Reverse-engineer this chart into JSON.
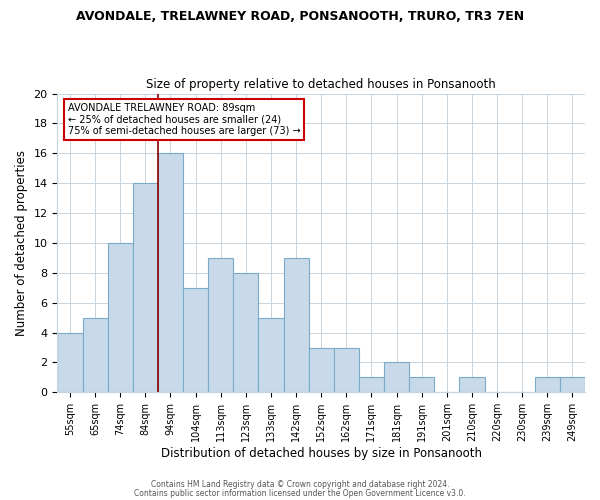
{
  "title": "AVONDALE, TRELAWNEY ROAD, PONSANOOTH, TRURO, TR3 7EN",
  "subtitle": "Size of property relative to detached houses in Ponsanooth",
  "xlabel": "Distribution of detached houses by size in Ponsanooth",
  "ylabel": "Number of detached properties",
  "bar_color": "#c8daea",
  "bar_edge_color": "#7baac8",
  "categories": [
    "55sqm",
    "65sqm",
    "74sqm",
    "84sqm",
    "94sqm",
    "104sqm",
    "113sqm",
    "123sqm",
    "133sqm",
    "142sqm",
    "152sqm",
    "162sqm",
    "171sqm",
    "181sqm",
    "191sqm",
    "201sqm",
    "210sqm",
    "220sqm",
    "230sqm",
    "239sqm",
    "249sqm"
  ],
  "values": [
    4,
    5,
    10,
    14,
    16,
    7,
    9,
    8,
    5,
    9,
    3,
    3,
    1,
    2,
    1,
    0,
    1,
    0,
    0,
    1,
    1
  ],
  "ylim": [
    0,
    20
  ],
  "yticks": [
    0,
    2,
    4,
    6,
    8,
    10,
    12,
    14,
    16,
    18,
    20
  ],
  "vline_color": "#8b0000",
  "annotation_lines": [
    "AVONDALE TRELAWNEY ROAD: 89sqm",
    "← 25% of detached houses are smaller (24)",
    "75% of semi-detached houses are larger (73) →"
  ],
  "footer_lines": [
    "Contains HM Land Registry data © Crown copyright and database right 2024.",
    "Contains public sector information licensed under the Open Government Licence v3.0."
  ],
  "background_color": "#ffffff",
  "grid_color": "#c8d4de"
}
